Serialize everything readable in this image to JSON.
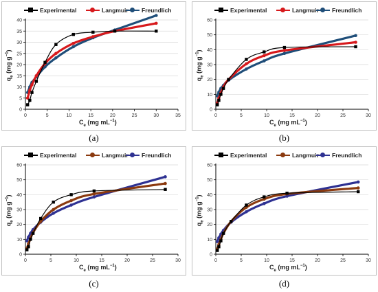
{
  "legend": {
    "experimental": "Experimental",
    "langmuir": "Langmuir",
    "freundlich": "Freundlich"
  },
  "colors": {
    "experimental": "#000000",
    "langmuir": "#d7191c",
    "freundlich": "#1f4e79",
    "langmuir_brown": "#8b3a0f",
    "freundlich_navy": "#2e3192"
  },
  "chart_data": [
    {
      "id": "a",
      "caption": "(a)",
      "type": "line",
      "xlabel": "C",
      "xlabel_sub": "e",
      "xlabel_unit": " (mg mL",
      "xlabel_sup": "−1",
      "xlabel_end": ")",
      "ylabel": "q",
      "ylabel_sub": "e",
      "ylabel_unit": " (mg g",
      "ylabel_sup": "−1",
      "ylabel_end": ")",
      "xlim": [
        0,
        35
      ],
      "ylim": [
        0,
        40
      ],
      "xticks": [
        0,
        5,
        10,
        15,
        20,
        25,
        30,
        35
      ],
      "yticks": [
        0,
        5,
        10,
        15,
        20,
        25,
        30,
        35,
        40
      ],
      "series": [
        {
          "name": "Experimental",
          "x": [
            0.5,
            1.0,
            1.5,
            2.5,
            4.5,
            7.0,
            11.0,
            15.5,
            20.5,
            30.0
          ],
          "y": [
            2.0,
            4.0,
            7.5,
            12.5,
            21.0,
            29.0,
            33.5,
            34.5,
            35.0,
            35.0
          ]
        },
        {
          "name": "Langmuir",
          "x": [
            0.5,
            1.0,
            1.5,
            2.5,
            4.5,
            7.0,
            11.0,
            15.5,
            20.5,
            30.0
          ],
          "y": [
            5.0,
            8.5,
            11.0,
            15.0,
            20.5,
            25.0,
            29.5,
            32.5,
            35.0,
            38.5
          ]
        },
        {
          "name": "Freundlich",
          "x": [
            0.5,
            1.0,
            1.5,
            2.5,
            4.5,
            7.0,
            11.0,
            15.5,
            20.5,
            30.0
          ],
          "y": [
            7.5,
            10.0,
            12.0,
            14.5,
            19.0,
            23.0,
            28.0,
            32.0,
            35.5,
            42.0
          ]
        }
      ]
    },
    {
      "id": "b",
      "caption": "(b)",
      "type": "line",
      "xlabel": "C",
      "xlabel_sub": "e",
      "xlabel_unit": " (mg mL",
      "xlabel_sup": "−1",
      "xlabel_end": ")",
      "ylabel": "q",
      "ylabel_sub": "e",
      "ylabel_unit": " (mg g",
      "ylabel_sup": "−1",
      "ylabel_end": ")",
      "xlim": [
        0,
        30
      ],
      "ylim": [
        0,
        60
      ],
      "xticks": [
        0,
        5,
        10,
        15,
        20,
        25,
        30
      ],
      "yticks": [
        0,
        10,
        20,
        30,
        40,
        50,
        60
      ],
      "series": [
        {
          "name": "Experimental",
          "x": [
            0.3,
            0.6,
            1.0,
            1.5,
            2.5,
            6.0,
            9.5,
            13.5,
            27.5
          ],
          "y": [
            3.0,
            6.0,
            10.0,
            14.0,
            20.0,
            33.5,
            38.5,
            41.5,
            42.0
          ]
        },
        {
          "name": "Langmuir",
          "x": [
            0.3,
            0.6,
            1.0,
            1.5,
            2.5,
            6.0,
            9.5,
            13.5,
            27.5
          ],
          "y": [
            4.0,
            7.5,
            11.0,
            15.0,
            20.0,
            30.5,
            36.0,
            39.5,
            45.0
          ]
        },
        {
          "name": "Freundlich",
          "x": [
            0.3,
            0.6,
            1.0,
            1.5,
            2.5,
            6.0,
            9.5,
            13.5,
            27.5
          ],
          "y": [
            9.0,
            11.5,
            14.0,
            16.0,
            19.5,
            27.0,
            32.5,
            37.5,
            49.5
          ]
        }
      ]
    },
    {
      "id": "c",
      "caption": "(c)",
      "type": "line",
      "xlabel": "C",
      "xlabel_sub": "e",
      "xlabel_unit": " (mg mL",
      "xlabel_sup": "−1",
      "xlabel_end": ")",
      "ylabel": "q",
      "ylabel_sub": "e",
      "ylabel_unit": " (mg g",
      "ylabel_sup": "−1",
      "ylabel_end": ")",
      "xlim": [
        0,
        30
      ],
      "ylim": [
        0,
        60
      ],
      "xticks": [
        0,
        5,
        10,
        15,
        20,
        25,
        30
      ],
      "yticks": [
        0,
        10,
        20,
        30,
        40,
        50,
        60
      ],
      "series": [
        {
          "name": "Experimental",
          "x": [
            0.3,
            0.6,
            1.0,
            1.5,
            3.0,
            5.5,
            9.0,
            13.5,
            27.5
          ],
          "y": [
            3.0,
            5.0,
            10.0,
            14.0,
            24.0,
            35.0,
            40.0,
            42.5,
            43.5
          ]
        },
        {
          "name": "Langmuir",
          "x": [
            0.3,
            0.6,
            1.0,
            1.5,
            3.0,
            5.5,
            9.0,
            13.5,
            27.5
          ],
          "y": [
            4.0,
            7.0,
            10.5,
            14.5,
            22.0,
            30.0,
            36.0,
            40.5,
            47.5
          ]
        },
        {
          "name": "Freundlich",
          "x": [
            0.3,
            0.6,
            1.0,
            1.5,
            3.0,
            5.5,
            9.0,
            13.5,
            27.5
          ],
          "y": [
            9.0,
            11.5,
            14.0,
            16.5,
            21.5,
            27.5,
            33.0,
            38.5,
            52.0
          ]
        }
      ]
    },
    {
      "id": "d",
      "caption": "(d)",
      "type": "line",
      "xlabel": "C",
      "xlabel_sub": "e",
      "xlabel_unit": " (mg mL",
      "xlabel_sup": "−1",
      "xlabel_end": ")",
      "ylabel": "q",
      "ylabel_sub": "e",
      "ylabel_unit": " (mg g",
      "ylabel_sup": "−1",
      "ylabel_end": ")",
      "xlim": [
        0,
        30
      ],
      "ylim": [
        0,
        60
      ],
      "xticks": [
        0,
        5,
        10,
        15,
        20,
        25,
        30
      ],
      "yticks": [
        0,
        10,
        20,
        30,
        40,
        50,
        60
      ],
      "series": [
        {
          "name": "Experimental",
          "x": [
            0.3,
            0.6,
            1.0,
            1.5,
            3.0,
            6.0,
            9.5,
            14.0,
            28.0
          ],
          "y": [
            2.5,
            5.0,
            9.0,
            14.0,
            22.0,
            33.0,
            38.5,
            41.0,
            42.0
          ]
        },
        {
          "name": "Langmuir",
          "x": [
            0.3,
            0.6,
            1.0,
            1.5,
            3.0,
            6.0,
            9.5,
            14.0,
            28.0
          ],
          "y": [
            3.5,
            6.5,
            10.0,
            14.0,
            22.0,
            31.5,
            37.0,
            40.5,
            44.5
          ]
        },
        {
          "name": "Freundlich",
          "x": [
            0.3,
            0.6,
            1.0,
            1.5,
            3.0,
            6.0,
            9.5,
            14.0,
            28.0
          ],
          "y": [
            8.5,
            11.0,
            13.5,
            16.0,
            21.5,
            28.5,
            34.0,
            39.0,
            48.5
          ]
        }
      ]
    }
  ]
}
